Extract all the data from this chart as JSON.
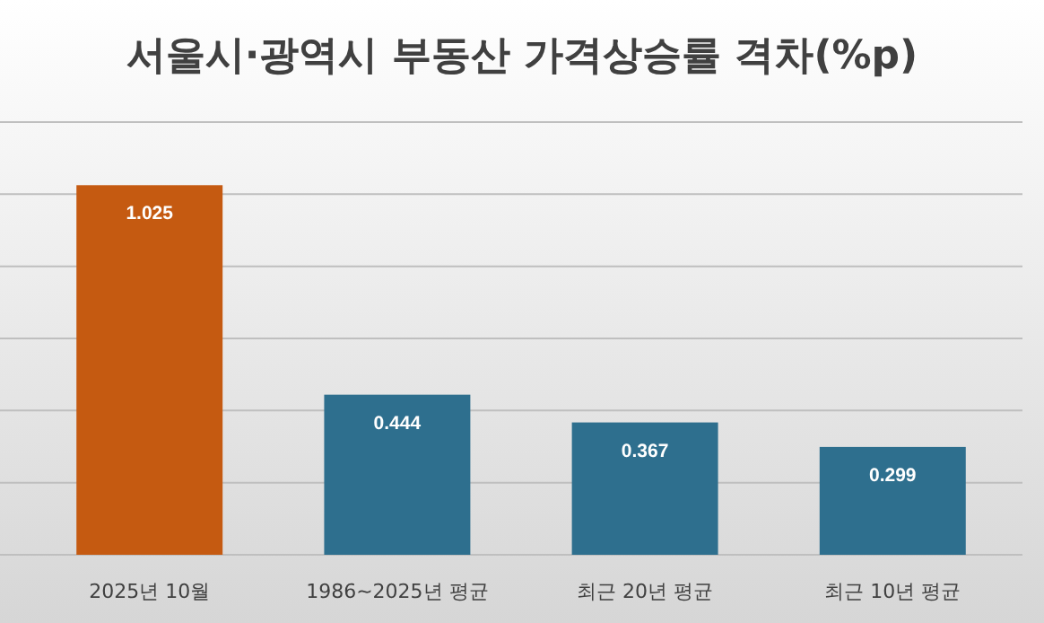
{
  "chart_data": {
    "type": "bar",
    "title": "서울시·광역시 부동산 가격상승률 격차(%p)",
    "categories": [
      "2025년 10월",
      "1986~2025년 평균",
      "최근 20년 평균",
      "최근 10년 평균"
    ],
    "values": [
      1.025,
      0.444,
      0.367,
      0.299
    ],
    "colors": [
      "#c55a11",
      "#2e6f8e",
      "#2e6f8e",
      "#2e6f8e"
    ],
    "ylim": [
      0,
      1.2
    ],
    "yticks": [
      {
        "value": 0,
        "label": null
      },
      {
        "value": 0.2,
        "label": null
      },
      {
        "value": 0.4,
        "label": null
      },
      {
        "value": 0.6,
        "label": null
      },
      {
        "value": 0.8,
        "label": null
      },
      {
        "value": 1.0,
        "label": null
      },
      {
        "value": 1.2,
        "label": null
      }
    ],
    "tick_labels": "x",
    "grid": "y",
    "data_labels": true
  }
}
